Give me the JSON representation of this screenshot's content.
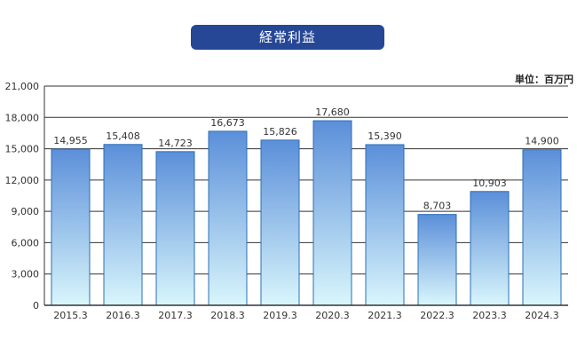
{
  "chart_data": {
    "type": "bar",
    "title": "経常利益",
    "unit": "単位：百万円",
    "categories": [
      "2015.3",
      "2016.3",
      "2017.3",
      "2018.3",
      "2019.3",
      "2020.3",
      "2021.3",
      "2022.3",
      "2023.3",
      "2024.3"
    ],
    "values": [
      14955,
      15408,
      14723,
      16673,
      15826,
      17680,
      15390,
      8703,
      10903,
      14900
    ],
    "value_labels": [
      "14,955",
      "15,408",
      "14,723",
      "16,673",
      "15,826",
      "17,680",
      "15,390",
      "8,703",
      "10,903",
      "14,900"
    ],
    "y_ticks": [
      0,
      3000,
      6000,
      9000,
      12000,
      15000,
      18000,
      21000
    ],
    "y_tick_labels": [
      "0",
      "3,000",
      "6,000",
      "9,000",
      "12,000",
      "15,000",
      "18,000",
      "21,000"
    ],
    "ylim": [
      0,
      21000
    ],
    "grid": true,
    "bar_color_top": "#5b8fd9",
    "bar_color_bottom": "#d9f6fc",
    "bar_edge_color": "#2a6fb7",
    "title_color": "#264796"
  }
}
